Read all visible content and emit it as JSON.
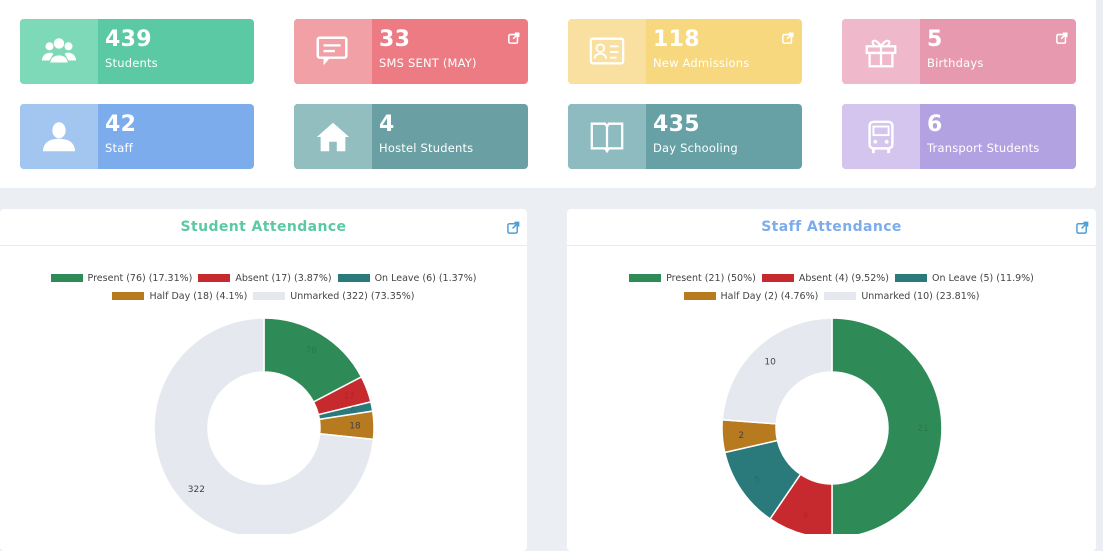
{
  "tiles": [
    {
      "value": "439",
      "label": "Students",
      "icon": "users-icon",
      "left_color": "#7ed9b8",
      "right_color": "#5bc9a4",
      "external": false
    },
    {
      "value": "33",
      "label": "SMS SENT (MAY)",
      "icon": "chat-icon",
      "left_color": "#f1a1a6",
      "right_color": "#ec7b84",
      "external": true
    },
    {
      "value": "118",
      "label": "New Admissions",
      "icon": "id-card-icon",
      "left_color": "#f9e0a0",
      "right_color": "#f8d87e",
      "external": true
    },
    {
      "value": "5",
      "label": "Birthdays",
      "icon": "gift-icon",
      "left_color": "#f0b8cb",
      "right_color": "#e79aaf",
      "external": true
    },
    {
      "value": "42",
      "label": "Staff",
      "icon": "user-icon",
      "left_color": "#a3c6f1",
      "right_color": "#7caceb",
      "external": false
    },
    {
      "value": "4",
      "label": "Hostel Students",
      "icon": "home-icon",
      "left_color": "#92bec0",
      "right_color": "#6a9fa3",
      "external": false
    },
    {
      "value": "435",
      "label": "Day Schooling",
      "icon": "book-icon",
      "left_color": "#8dbbbf",
      "right_color": "#67a0a5",
      "external": false
    },
    {
      "value": "6",
      "label": "Transport Students",
      "icon": "bus-icon",
      "left_color": "#d4c5ee",
      "right_color": "#b3a2e1",
      "external": false
    }
  ],
  "student_card": {
    "title": "Student Attendance",
    "title_color": "#5bc9a4",
    "legend_row1": [
      "Present (76) (17.31%)",
      "Absent (17) (3.87%)",
      "On Leave (6) (1.37%)"
    ],
    "legend_row2": [
      "Half Day (18) (4.1%)",
      "Unmarked (322) (73.35%)"
    ]
  },
  "staff_card": {
    "title": "Staff Attendance",
    "title_color": "#7caceb",
    "legend_row1": [
      "Present (21) (50%)",
      "Absent (4) (9.52%)",
      "On Leave (5) (11.9%)"
    ],
    "legend_row2": [
      "Half Day (2) (4.76%)",
      "Unmarked (10) (23.81%)"
    ]
  },
  "chart_data": [
    {
      "type": "pie",
      "title": "Student Attendance",
      "categories": [
        "Present",
        "Absent",
        "On Leave",
        "Half Day",
        "Unmarked"
      ],
      "values": [
        76,
        17,
        6,
        18,
        322
      ],
      "colors": [
        "#2e8b57",
        "#c62a2e",
        "#2a7a7b",
        "#b87a1e",
        "#e5e9ef"
      ],
      "value_labels": [
        "76",
        "17",
        "6",
        "18",
        "322"
      ],
      "value_label_colors": [
        "#2a7a4f",
        "#b62428",
        "#236f70",
        "#444444",
        "#444444"
      ]
    },
    {
      "type": "pie",
      "title": "Staff Attendance",
      "categories": [
        "Present",
        "Absent",
        "On Leave",
        "Half Day",
        "Unmarked"
      ],
      "values": [
        21,
        4,
        5,
        2,
        10
      ],
      "colors": [
        "#2e8b57",
        "#c62a2e",
        "#2a7a7b",
        "#b87a1e",
        "#e5e9ef"
      ],
      "value_labels": [
        "21",
        "4",
        "5",
        "2",
        "10"
      ],
      "value_label_colors": [
        "#2a7a4f",
        "#b62428",
        "#236f70",
        "#444444",
        "#444444"
      ]
    }
  ]
}
